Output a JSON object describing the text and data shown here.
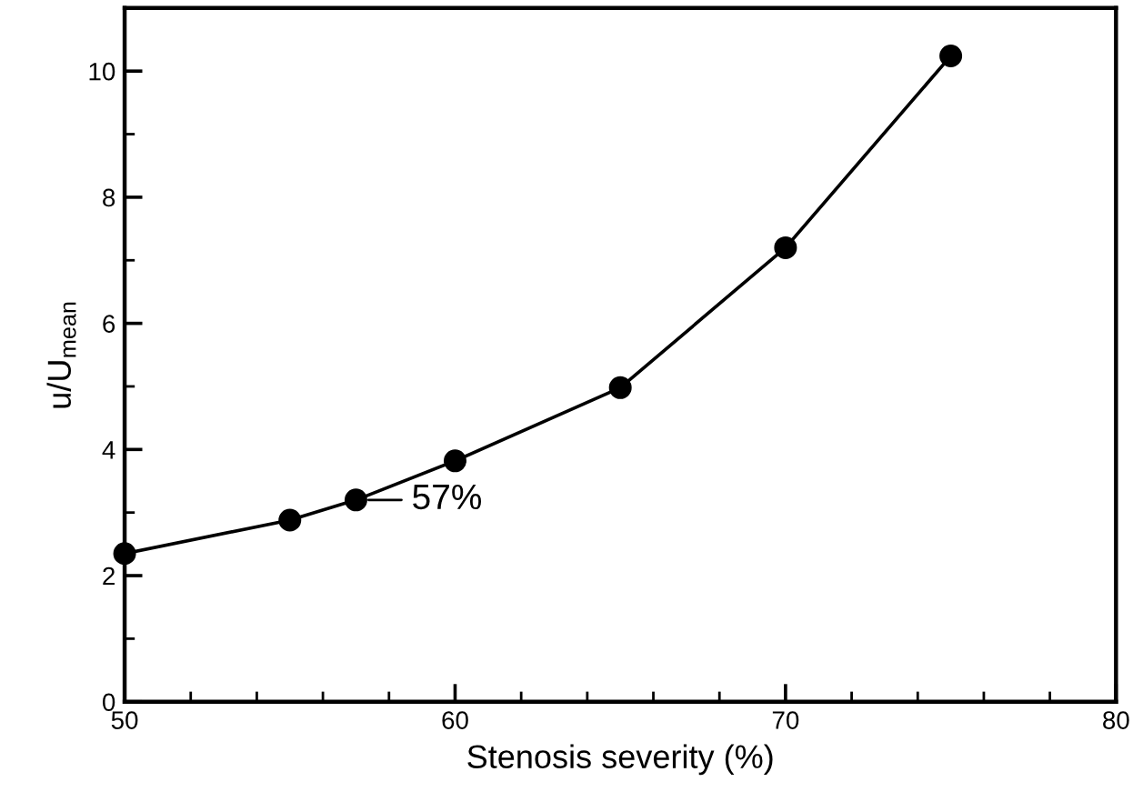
{
  "chart_data": {
    "type": "line",
    "xlabel": "Stenosis severity (%)",
    "ylabel": "u/U$_{mean}$",
    "x": [
      50,
      55,
      57,
      60,
      65,
      70,
      75
    ],
    "series": [
      {
        "color": "#000000",
        "values": [
          2.35,
          2.88,
          3.2,
          3.82,
          4.98,
          7.2,
          10.24
        ]
      }
    ],
    "marker": "circle",
    "line_style": "solid",
    "xlim": [
      50,
      80
    ],
    "ylim": [
      0,
      11
    ],
    "xticks": [
      50,
      {
        "value": 52,
        "label": null
      },
      {
        "value": 54,
        "label": null
      },
      {
        "value": 56,
        "label": null
      },
      {
        "value": 58,
        "label": null
      },
      60,
      {
        "value": 62,
        "label": null
      },
      {
        "value": 64,
        "label": null
      },
      {
        "value": 66,
        "label": null
      },
      {
        "value": 68,
        "label": null
      },
      70,
      {
        "value": 72,
        "label": null
      },
      {
        "value": 74,
        "label": null
      },
      {
        "value": 76,
        "label": null
      },
      {
        "value": 78,
        "label": null
      },
      80
    ],
    "yticks": [
      0,
      {
        "value": 1,
        "label": null
      },
      2,
      {
        "value": 3,
        "label": null
      },
      4,
      {
        "value": 5,
        "label": null
      },
      6,
      {
        "value": 7,
        "label": null
      },
      8,
      {
        "value": 9,
        "label": null
      },
      10
    ],
    "annotations": [
      {
        "text": "57%",
        "x": 57,
        "y": 3.2
      }
    ]
  }
}
